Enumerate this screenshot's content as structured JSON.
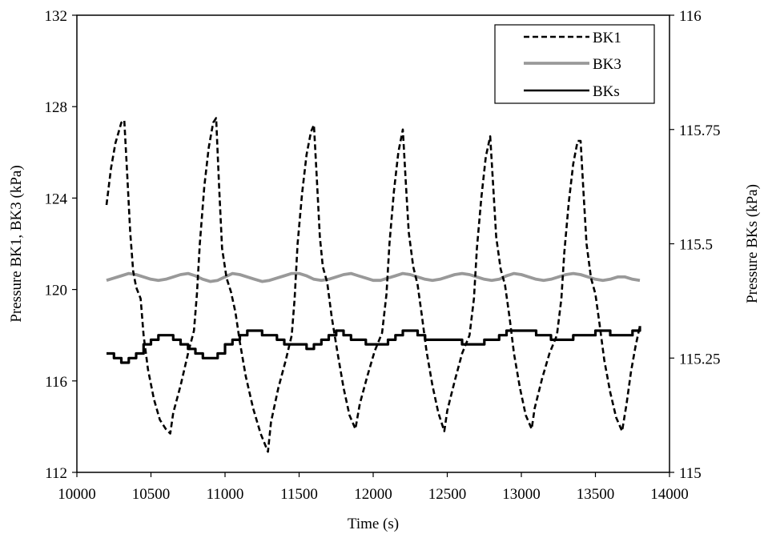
{
  "chart_data": {
    "type": "line",
    "title": "",
    "xlabel": "Time (s)",
    "ylabel_left": "Pressure BK1, BK3 (kPa)",
    "ylabel_right": "Pressure BKs (kPa)",
    "xlim": [
      10000,
      14000
    ],
    "ylim_left": [
      112,
      132
    ],
    "ylim_right": [
      115,
      116
    ],
    "x_ticks": [
      "10000",
      "10500",
      "11000",
      "11500",
      "12000",
      "12500",
      "13000",
      "13500",
      "14000"
    ],
    "y_left_ticks": [
      "112",
      "116",
      "120",
      "124",
      "128",
      "132"
    ],
    "y_right_ticks": [
      "115",
      "115.25",
      "115.5",
      "115.75",
      "116"
    ],
    "grid": false,
    "legend_position": "top-right",
    "series": [
      {
        "name": "BK1",
        "axis": "left",
        "style": "dashed",
        "color": "#000000",
        "points": [
          [
            10200,
            123.7
          ],
          [
            10230,
            125.3
          ],
          [
            10260,
            126.4
          ],
          [
            10300,
            127.3
          ],
          [
            10320,
            127.4
          ],
          [
            10340,
            125.0
          ],
          [
            10360,
            122.5
          ],
          [
            10380,
            120.8
          ],
          [
            10400,
            120.1
          ],
          [
            10430,
            119.6
          ],
          [
            10450,
            118.0
          ],
          [
            10480,
            116.5
          ],
          [
            10520,
            115.2
          ],
          [
            10560,
            114.3
          ],
          [
            10600,
            113.9
          ],
          [
            10630,
            113.7
          ],
          [
            10650,
            114.6
          ],
          [
            10700,
            115.8
          ],
          [
            10750,
            117.2
          ],
          [
            10790,
            118.2
          ],
          [
            10810,
            119.8
          ],
          [
            10830,
            122.0
          ],
          [
            10860,
            124.5
          ],
          [
            10890,
            126.2
          ],
          [
            10920,
            127.3
          ],
          [
            10940,
            127.5
          ],
          [
            10960,
            124.5
          ],
          [
            10980,
            121.8
          ],
          [
            11010,
            120.5
          ],
          [
            11040,
            119.9
          ],
          [
            11070,
            119.0
          ],
          [
            11100,
            117.7
          ],
          [
            11140,
            116.2
          ],
          [
            11190,
            114.8
          ],
          [
            11240,
            113.7
          ],
          [
            11290,
            112.9
          ],
          [
            11310,
            114.2
          ],
          [
            11360,
            115.7
          ],
          [
            11410,
            116.9
          ],
          [
            11450,
            118.0
          ],
          [
            11470,
            119.6
          ],
          [
            11490,
            122.0
          ],
          [
            11520,
            124.2
          ],
          [
            11550,
            125.9
          ],
          [
            11580,
            126.9
          ],
          [
            11600,
            127.2
          ],
          [
            11620,
            124.8
          ],
          [
            11640,
            122.3
          ],
          [
            11660,
            121.0
          ],
          [
            11690,
            120.3
          ],
          [
            11720,
            118.8
          ],
          [
            11760,
            117.2
          ],
          [
            11800,
            115.7
          ],
          [
            11840,
            114.5
          ],
          [
            11880,
            113.9
          ],
          [
            11910,
            115.0
          ],
          [
            11960,
            116.2
          ],
          [
            12010,
            117.3
          ],
          [
            12060,
            118.1
          ],
          [
            12090,
            119.8
          ],
          [
            12110,
            122.0
          ],
          [
            12140,
            124.3
          ],
          [
            12170,
            126.0
          ],
          [
            12200,
            127.0
          ],
          [
            12220,
            124.7
          ],
          [
            12240,
            122.5
          ],
          [
            12270,
            121.0
          ],
          [
            12300,
            120.2
          ],
          [
            12330,
            118.8
          ],
          [
            12360,
            117.3
          ],
          [
            12400,
            115.8
          ],
          [
            12440,
            114.6
          ],
          [
            12480,
            113.8
          ],
          [
            12500,
            114.7
          ],
          [
            12550,
            116.0
          ],
          [
            12600,
            117.2
          ],
          [
            12650,
            118.0
          ],
          [
            12680,
            119.6
          ],
          [
            12700,
            121.8
          ],
          [
            12730,
            124.0
          ],
          [
            12760,
            125.8
          ],
          [
            12790,
            126.7
          ],
          [
            12810,
            124.5
          ],
          [
            12830,
            122.3
          ],
          [
            12860,
            120.9
          ],
          [
            12890,
            120.2
          ],
          [
            12920,
            118.8
          ],
          [
            12950,
            117.2
          ],
          [
            12990,
            115.7
          ],
          [
            13030,
            114.5
          ],
          [
            13070,
            113.9
          ],
          [
            13090,
            114.8
          ],
          [
            13140,
            116.1
          ],
          [
            13190,
            117.2
          ],
          [
            13240,
            118.0
          ],
          [
            13270,
            119.6
          ],
          [
            13290,
            121.6
          ],
          [
            13320,
            123.8
          ],
          [
            13350,
            125.5
          ],
          [
            13380,
            126.5
          ],
          [
            13400,
            126.5
          ],
          [
            13420,
            124.2
          ],
          [
            13440,
            122.0
          ],
          [
            13470,
            120.5
          ],
          [
            13500,
            119.8
          ],
          [
            13530,
            118.4
          ],
          [
            13560,
            116.9
          ],
          [
            13600,
            115.5
          ],
          [
            13640,
            114.4
          ],
          [
            13680,
            113.8
          ],
          [
            13710,
            115.0
          ],
          [
            13740,
            116.4
          ],
          [
            13770,
            117.5
          ],
          [
            13800,
            118.4
          ]
        ]
      },
      {
        "name": "BK3",
        "axis": "left",
        "style": "solid",
        "color": "#999999",
        "points": [
          [
            10200,
            120.4
          ],
          [
            10250,
            120.5
          ],
          [
            10300,
            120.6
          ],
          [
            10350,
            120.7
          ],
          [
            10400,
            120.65
          ],
          [
            10450,
            120.55
          ],
          [
            10500,
            120.45
          ],
          [
            10550,
            120.4
          ],
          [
            10600,
            120.45
          ],
          [
            10650,
            120.55
          ],
          [
            10700,
            120.65
          ],
          [
            10750,
            120.7
          ],
          [
            10800,
            120.6
          ],
          [
            10850,
            120.45
          ],
          [
            10900,
            120.35
          ],
          [
            10950,
            120.4
          ],
          [
            11000,
            120.55
          ],
          [
            11050,
            120.7
          ],
          [
            11100,
            120.65
          ],
          [
            11150,
            120.55
          ],
          [
            11200,
            120.45
          ],
          [
            11250,
            120.35
          ],
          [
            11300,
            120.4
          ],
          [
            11350,
            120.5
          ],
          [
            11400,
            120.6
          ],
          [
            11450,
            120.7
          ],
          [
            11500,
            120.7
          ],
          [
            11550,
            120.6
          ],
          [
            11600,
            120.45
          ],
          [
            11650,
            120.4
          ],
          [
            11700,
            120.45
          ],
          [
            11750,
            120.55
          ],
          [
            11800,
            120.65
          ],
          [
            11850,
            120.7
          ],
          [
            11900,
            120.6
          ],
          [
            11950,
            120.5
          ],
          [
            12000,
            120.4
          ],
          [
            12050,
            120.4
          ],
          [
            12100,
            120.5
          ],
          [
            12150,
            120.6
          ],
          [
            12200,
            120.7
          ],
          [
            12250,
            120.65
          ],
          [
            12300,
            120.55
          ],
          [
            12350,
            120.45
          ],
          [
            12400,
            120.4
          ],
          [
            12450,
            120.45
          ],
          [
            12500,
            120.55
          ],
          [
            12550,
            120.65
          ],
          [
            12600,
            120.7
          ],
          [
            12650,
            120.65
          ],
          [
            12700,
            120.55
          ],
          [
            12750,
            120.45
          ],
          [
            12800,
            120.4
          ],
          [
            12850,
            120.45
          ],
          [
            12900,
            120.6
          ],
          [
            12950,
            120.7
          ],
          [
            13000,
            120.65
          ],
          [
            13050,
            120.55
          ],
          [
            13100,
            120.45
          ],
          [
            13150,
            120.4
          ],
          [
            13200,
            120.45
          ],
          [
            13250,
            120.55
          ],
          [
            13300,
            120.65
          ],
          [
            13350,
            120.7
          ],
          [
            13400,
            120.65
          ],
          [
            13450,
            120.55
          ],
          [
            13500,
            120.45
          ],
          [
            13550,
            120.4
          ],
          [
            13600,
            120.45
          ],
          [
            13650,
            120.55
          ],
          [
            13700,
            120.55
          ],
          [
            13750,
            120.45
          ],
          [
            13800,
            120.4
          ]
        ]
      },
      {
        "name": "BKs",
        "axis": "right",
        "style": "solid",
        "color": "#000000",
        "points": [
          [
            10200,
            115.26
          ],
          [
            10250,
            115.25
          ],
          [
            10300,
            115.24
          ],
          [
            10350,
            115.25
          ],
          [
            10400,
            115.26
          ],
          [
            10450,
            115.28
          ],
          [
            10500,
            115.29
          ],
          [
            10550,
            115.3
          ],
          [
            10600,
            115.3
          ],
          [
            10650,
            115.29
          ],
          [
            10700,
            115.28
          ],
          [
            10750,
            115.27
          ],
          [
            10800,
            115.26
          ],
          [
            10850,
            115.25
          ],
          [
            10900,
            115.25
          ],
          [
            10950,
            115.26
          ],
          [
            11000,
            115.28
          ],
          [
            11050,
            115.29
          ],
          [
            11100,
            115.3
          ],
          [
            11150,
            115.31
          ],
          [
            11200,
            115.31
          ],
          [
            11250,
            115.3
          ],
          [
            11300,
            115.3
          ],
          [
            11350,
            115.29
          ],
          [
            11400,
            115.28
          ],
          [
            11450,
            115.28
          ],
          [
            11500,
            115.28
          ],
          [
            11550,
            115.27
          ],
          [
            11600,
            115.28
          ],
          [
            11650,
            115.29
          ],
          [
            11700,
            115.3
          ],
          [
            11750,
            115.31
          ],
          [
            11800,
            115.3
          ],
          [
            11850,
            115.29
          ],
          [
            11900,
            115.29
          ],
          [
            11950,
            115.28
          ],
          [
            12000,
            115.28
          ],
          [
            12050,
            115.28
          ],
          [
            12100,
            115.29
          ],
          [
            12150,
            115.3
          ],
          [
            12200,
            115.31
          ],
          [
            12250,
            115.31
          ],
          [
            12300,
            115.3
          ],
          [
            12350,
            115.29
          ],
          [
            12400,
            115.29
          ],
          [
            12450,
            115.29
          ],
          [
            12500,
            115.29
          ],
          [
            12550,
            115.29
          ],
          [
            12600,
            115.28
          ],
          [
            12650,
            115.28
          ],
          [
            12700,
            115.28
          ],
          [
            12750,
            115.29
          ],
          [
            12800,
            115.29
          ],
          [
            12850,
            115.3
          ],
          [
            12900,
            115.31
          ],
          [
            12950,
            115.31
          ],
          [
            13000,
            115.31
          ],
          [
            13050,
            115.31
          ],
          [
            13100,
            115.3
          ],
          [
            13150,
            115.3
          ],
          [
            13200,
            115.29
          ],
          [
            13250,
            115.29
          ],
          [
            13300,
            115.29
          ],
          [
            13350,
            115.3
          ],
          [
            13400,
            115.3
          ],
          [
            13450,
            115.3
          ],
          [
            13500,
            115.31
          ],
          [
            13550,
            115.31
          ],
          [
            13600,
            115.3
          ],
          [
            13650,
            115.3
          ],
          [
            13700,
            115.3
          ],
          [
            13750,
            115.31
          ],
          [
            13800,
            115.32
          ]
        ]
      }
    ]
  }
}
